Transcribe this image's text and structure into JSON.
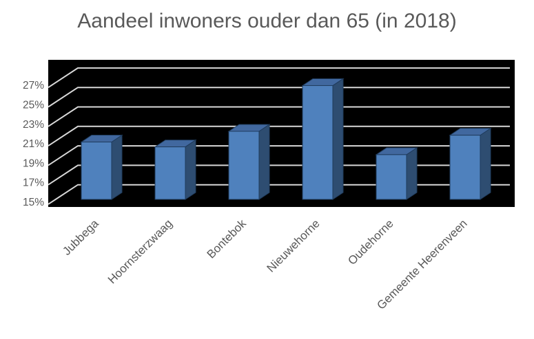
{
  "page": {
    "background": "#FFFFFF"
  },
  "title": "Aandeel inwoners ouder dan 65 (in 2018)",
  "chart_data": {
    "type": "bar",
    "variant": "3d-column",
    "title": "Aandeel inwoners ouder dan 65 (in 2018)",
    "categories": [
      "Jubbega",
      "Hoornsterzwaag",
      "Bontebok",
      "Nieuwehorne",
      "Oudehorne",
      "Gemeente Heerenveen"
    ],
    "values": [
      20.9,
      20.4,
      22.0,
      26.7,
      19.6,
      21.6
    ],
    "unit": "%",
    "ylim": [
      15,
      27
    ],
    "ytick_step": 2,
    "ytick_labels": [
      "15%",
      "17%",
      "19%",
      "21%",
      "23%",
      "25%",
      "27%"
    ],
    "xlabel": "",
    "ylabel": "",
    "grid": true,
    "legend": false,
    "x_label_rotation_deg": -45
  },
  "colors": {
    "text": "#595959",
    "plot_background": "#000000",
    "gridline": "#D8D8D8",
    "bar_front": "#4F81BD",
    "bar_top": "#41689F",
    "bar_side": "#2E4D71",
    "bar_outline": "#1F3B5C"
  }
}
